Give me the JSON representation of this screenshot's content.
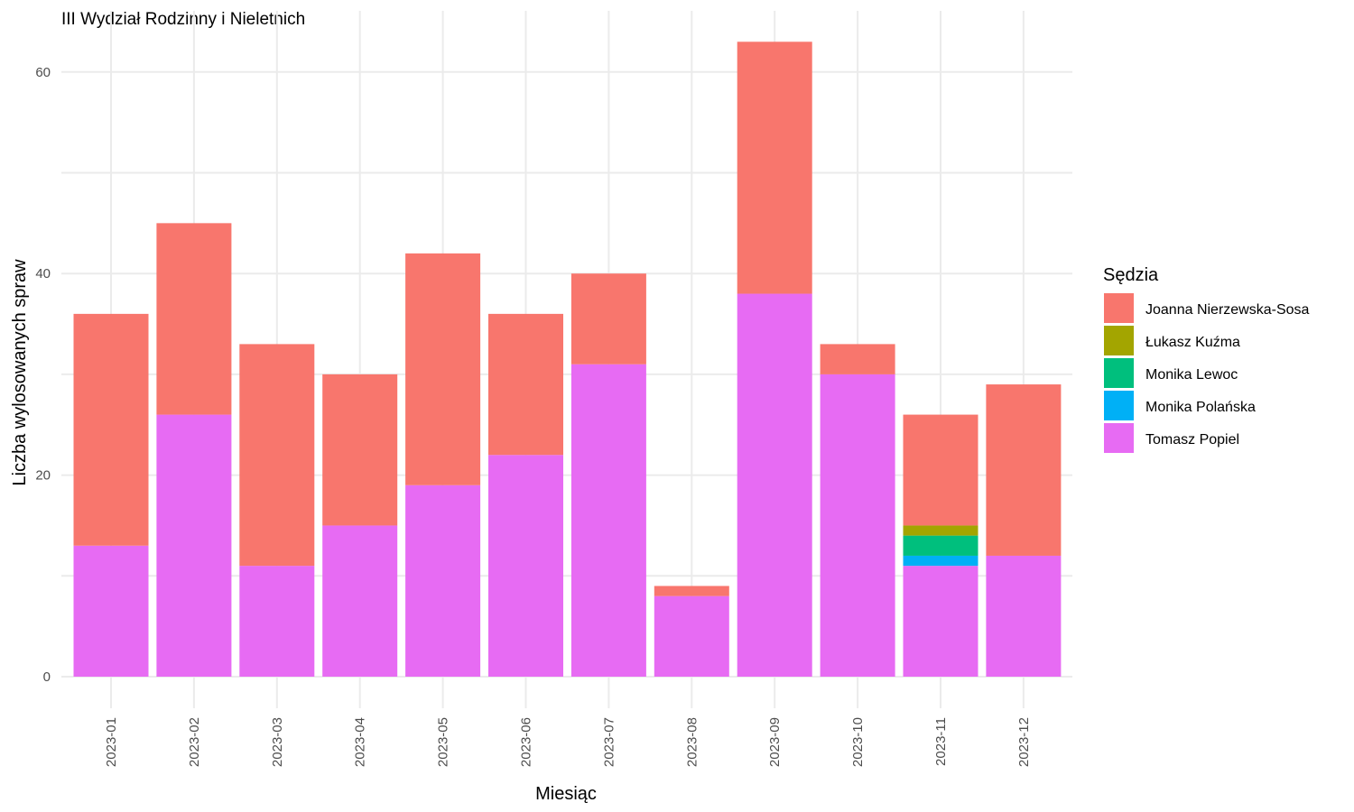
{
  "chart_data": {
    "type": "bar",
    "stacked": true,
    "title": "III Wydział Rodzinny i Nieletnich",
    "xlabel": "Miesiąc",
    "ylabel": "Liczba wylosowanych spraw",
    "ylim": [
      0,
      65
    ],
    "y_ticks": [
      0,
      20,
      40,
      60
    ],
    "grid": true,
    "legend": {
      "title": "Sędzia",
      "placement": "right"
    },
    "categories": [
      "2023-01",
      "2023-02",
      "2023-03",
      "2023-04",
      "2023-05",
      "2023-06",
      "2023-07",
      "2023-08",
      "2023-09",
      "2023-10",
      "2023-11",
      "2023-12"
    ],
    "series": [
      {
        "name": "Joanna Nierzewska-Sosa",
        "color": "#F8766D",
        "values": [
          23,
          19,
          22,
          15,
          23,
          14,
          9,
          1,
          25,
          3,
          11,
          17
        ]
      },
      {
        "name": "Łukasz Kuźma",
        "color": "#A3A500",
        "values": [
          0,
          0,
          0,
          0,
          0,
          0,
          0,
          0,
          0,
          0,
          1,
          0
        ]
      },
      {
        "name": "Monika Lewoc",
        "color": "#00BF7D",
        "values": [
          0,
          0,
          0,
          0,
          0,
          0,
          0,
          0,
          0,
          0,
          2,
          0
        ]
      },
      {
        "name": "Monika Polańska",
        "color": "#00B0F6",
        "values": [
          0,
          0,
          0,
          0,
          0,
          0,
          0,
          0,
          0,
          0,
          1,
          0
        ]
      },
      {
        "name": "Tomasz Popiel",
        "color": "#E76BF3",
        "values": [
          13,
          26,
          11,
          15,
          19,
          22,
          31,
          8,
          38,
          30,
          11,
          12
        ]
      }
    ]
  }
}
